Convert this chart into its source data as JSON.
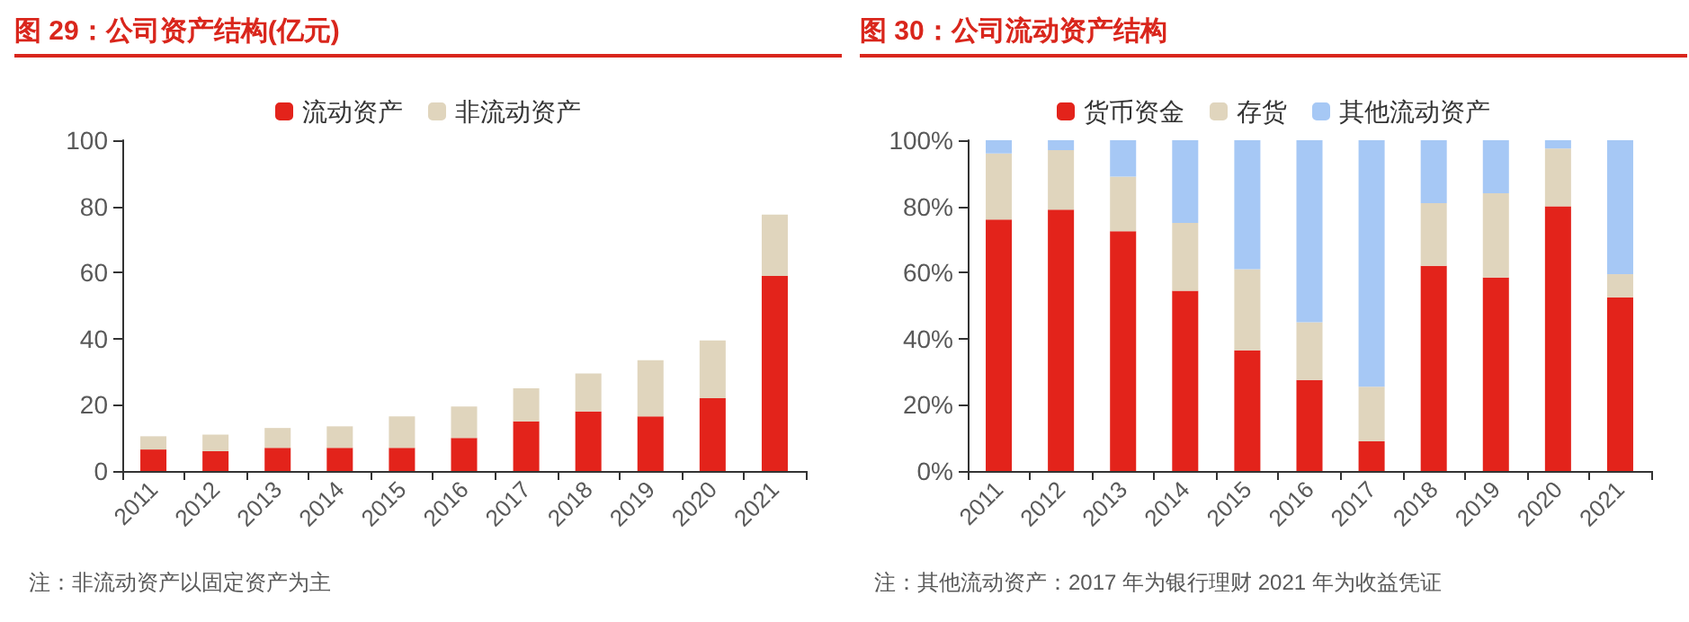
{
  "chart_data": [
    {
      "type": "bar",
      "title": "图 29：公司资产结构(亿元)",
      "categories": [
        "2011",
        "2012",
        "2013",
        "2014",
        "2015",
        "2016",
        "2017",
        "2018",
        "2019",
        "2020",
        "2021"
      ],
      "stacked": true,
      "legend": "top",
      "grid": false,
      "series": [
        {
          "name": "流动资产",
          "color": "#e3231b",
          "values": [
            6.5,
            6,
            7,
            7,
            7,
            10,
            15,
            18,
            16.5,
            22,
            59
          ]
        },
        {
          "name": "非流动资产",
          "color": "#e0d5bd",
          "values": [
            4,
            5,
            6,
            6.5,
            9.5,
            9.5,
            10,
            11.5,
            17,
            17.5,
            18.5
          ]
        }
      ],
      "ylim": [
        0,
        100
      ],
      "yticks": [
        0,
        20,
        40,
        60,
        80,
        100
      ],
      "annotations": [
        "注：非流动资产以固定资产为主"
      ]
    },
    {
      "type": "bar",
      "title": "图 30：公司流动资产结构",
      "categories": [
        "2011",
        "2012",
        "2013",
        "2014",
        "2015",
        "2016",
        "2017",
        "2018",
        "2019",
        "2020",
        "2021"
      ],
      "stacked": true,
      "legend": "top",
      "grid": false,
      "series": [
        {
          "name": "货币资金",
          "color": "#e3231b",
          "values": [
            76,
            79,
            72.5,
            54.5,
            36.5,
            27.5,
            9,
            62,
            58.5,
            80,
            52.5
          ]
        },
        {
          "name": "存货",
          "color": "#e0d5bd",
          "values": [
            20,
            18,
            16.5,
            20.5,
            24.5,
            17.5,
            16.5,
            19,
            25.5,
            17.5,
            7
          ]
        },
        {
          "name": "其他流动资产",
          "color": "#a6c8f5",
          "values": [
            4,
            3,
            11,
            25,
            39,
            55,
            74.5,
            19,
            16,
            2.5,
            40.5
          ]
        }
      ],
      "ylim": [
        0,
        100
      ],
      "yticks": [
        {
          "value": 0,
          "label": "0%"
        },
        {
          "value": 20,
          "label": "20%"
        },
        {
          "value": 40,
          "label": "40%"
        },
        {
          "value": 60,
          "label": "60%"
        },
        {
          "value": 80,
          "label": "80%"
        },
        {
          "value": 100,
          "label": "100%"
        }
      ],
      "annotations": [
        "注：其他流动资产：2017 年为银行理财 2021 年为收益凭证"
      ]
    }
  ]
}
